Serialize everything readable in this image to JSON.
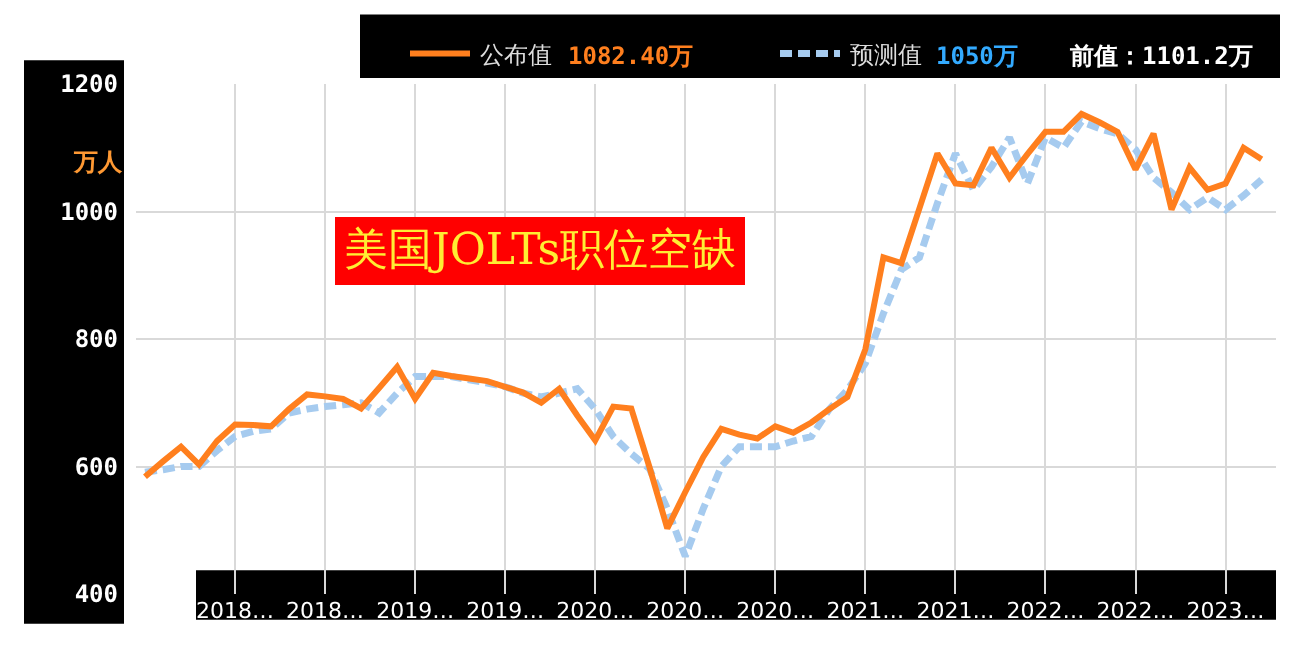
{
  "chart_data": {
    "type": "line",
    "title": "美国JOLTs职位空缺",
    "ylabel": "万人",
    "categories": [
      null,
      null,
      null,
      null,
      null,
      "2018…",
      null,
      null,
      null,
      null,
      "2018…",
      null,
      null,
      null,
      null,
      "2019…",
      null,
      null,
      null,
      null,
      "2019…",
      null,
      null,
      null,
      null,
      "2020…",
      null,
      null,
      null,
      null,
      "2020…",
      null,
      null,
      null,
      null,
      "2020…",
      null,
      null,
      null,
      null,
      "2021…",
      null,
      null,
      null,
      null,
      "2021…",
      null,
      null,
      null,
      null,
      "2022…",
      null,
      null,
      null,
      null,
      "2022…",
      null,
      null,
      null,
      null,
      "2023…",
      null,
      null
    ],
    "series": [
      {
        "name": "公布值",
        "color": "#ff7f1e",
        "line_style": "solid",
        "values": [
          584,
          608,
          631,
          603,
          640,
          666,
          665,
          663,
          690,
          713,
          710,
          706,
          691,
          723,
          756,
          706,
          747,
          742,
          738,
          734,
          725,
          716,
          700,
          722,
          680,
          641,
          694,
          691,
          600,
          503,
          560,
          615,
          659,
          650,
          644,
          663,
          653,
          669,
          690,
          709,
          784,
          928,
          919,
          1005,
          1091,
          1044,
          1041,
          1100,
          1053,
          1090,
          1125,
          1125,
          1153,
          1140,
          1125,
          1066,
          1122,
          1003,
          1069,
          1034,
          1044,
          1100,
          1082
        ]
      },
      {
        "name": "预测值",
        "color": "#a6cbef",
        "line_style": "dashed",
        "values": [
          591,
          595,
          600,
          600,
          625,
          647,
          655,
          659,
          684,
          690,
          694,
          697,
          700,
          684,
          715,
          741,
          741,
          741,
          736,
          731,
          725,
          715,
          709,
          715,
          722,
          690,
          647,
          620,
          597,
          534,
          459,
          534,
          600,
          631,
          631,
          631,
          640,
          647,
          690,
          720,
          762,
          840,
          909,
          928,
          1013,
          1091,
          1034,
          1070,
          1116,
          1044,
          1116,
          1100,
          1141,
          1130,
          1122,
          1097,
          1053,
          1030,
          1003,
          1022,
          1003,
          1025,
          1050
        ]
      }
    ],
    "annotations": [
      "1082.40万",
      "1050万",
      "前值：1101.2万"
    ],
    "ylim": [
      400,
      1200
    ],
    "yticks": [
      400,
      600,
      800,
      1000,
      1200
    ],
    "grid": true,
    "legend": "top",
    "marker": "none"
  }
}
